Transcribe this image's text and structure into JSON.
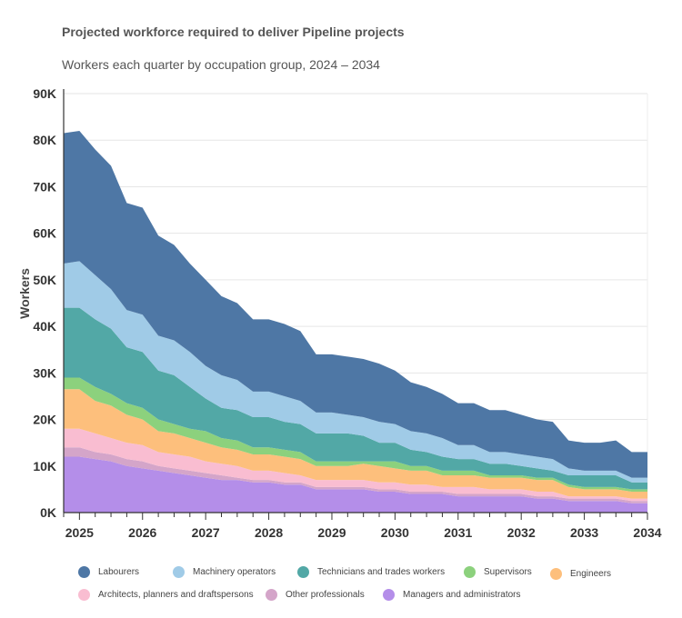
{
  "chart_data": {
    "type": "area",
    "stacked": true,
    "title": "Projected workforce required to deliver Pipeline projects",
    "subtitle": "Workers each quarter by occupation group, 2024 – 2034",
    "xlabel": "",
    "ylabel": "Workers",
    "ylim": [
      0,
      90000
    ],
    "xlim": [
      2024.75,
      2034
    ],
    "grid": true,
    "legend": "bottom",
    "y_ticks": [
      "0K",
      "10K",
      "20K",
      "30K",
      "40K",
      "50K",
      "60K",
      "70K",
      "80K",
      "90K"
    ],
    "x_ticks": [
      "2025",
      "2026",
      "2027",
      "2028",
      "2029",
      "2030",
      "2031",
      "2032",
      "2033",
      "2034"
    ],
    "x": [
      2024.75,
      2025,
      2025.25,
      2025.5,
      2025.75,
      2026,
      2026.25,
      2026.5,
      2026.75,
      2027,
      2027.25,
      2027.5,
      2027.75,
      2028,
      2028.25,
      2028.5,
      2028.75,
      2029,
      2029.25,
      2029.5,
      2029.75,
      2030,
      2030.25,
      2030.5,
      2030.75,
      2031,
      2031.25,
      2031.5,
      2031.75,
      2032,
      2032.25,
      2032.5,
      2032.75,
      2033,
      2033.25,
      2033.5,
      2033.75,
      2034
    ],
    "series": [
      {
        "name": "Managers and administrators",
        "color": "#b48ee9",
        "values": [
          12000,
          12000,
          11500,
          11000,
          10000,
          9500,
          9000,
          8500,
          8000,
          7500,
          7000,
          7000,
          6500,
          6500,
          6000,
          6000,
          5000,
          5000,
          5000,
          5000,
          4500,
          4500,
          4000,
          4000,
          4000,
          3500,
          3500,
          3500,
          3500,
          3500,
          3000,
          3000,
          2500,
          2500,
          2500,
          2500,
          2000,
          2000
        ]
      },
      {
        "name": "Other professionals",
        "color": "#d4a5c9",
        "values": [
          2000,
          2000,
          1500,
          1500,
          1500,
          1500,
          1000,
          1000,
          1000,
          1000,
          1000,
          500,
          500,
          500,
          500,
          500,
          500,
          500,
          500,
          500,
          500,
          500,
          500,
          500,
          500,
          500,
          500,
          500,
          500,
          500,
          500,
          500,
          500,
          500,
          500,
          500,
          500,
          500
        ]
      },
      {
        "name": "Architects, planners and draftspersons",
        "color": "#f9bdd1",
        "values": [
          4000,
          4000,
          4000,
          3500,
          3500,
          3500,
          3000,
          3000,
          3000,
          2500,
          2500,
          2500,
          2000,
          2000,
          2000,
          1500,
          1500,
          1500,
          1500,
          1500,
          1500,
          1500,
          1500,
          1500,
          1000,
          1500,
          1500,
          1000,
          1000,
          1000,
          1000,
          1000,
          500,
          500,
          500,
          500,
          500,
          500
        ]
      },
      {
        "name": "Engineers",
        "color": "#fdbf7c",
        "values": [
          8500,
          8500,
          7000,
          7000,
          6000,
          5500,
          4500,
          4500,
          4000,
          4000,
          3500,
          3500,
          3500,
          3500,
          3500,
          3500,
          3000,
          3000,
          3000,
          3500,
          3500,
          3000,
          3000,
          3000,
          2500,
          2500,
          2500,
          2500,
          2500,
          2500,
          2500,
          2500,
          2000,
          1500,
          1500,
          1500,
          1500,
          1500
        ]
      },
      {
        "name": "Supervisors",
        "color": "#8cd17d",
        "values": [
          2500,
          2500,
          3000,
          2500,
          2500,
          2500,
          2500,
          2000,
          2000,
          2500,
          2000,
          2000,
          1500,
          1500,
          1500,
          1500,
          1000,
          1000,
          1000,
          500,
          1000,
          1500,
          1000,
          1000,
          1000,
          1000,
          1000,
          500,
          500,
          500,
          500,
          500,
          500,
          500,
          500,
          500,
          500,
          500
        ]
      },
      {
        "name": "Technicians and trades workers",
        "color": "#52a8a6",
        "values": [
          15000,
          15000,
          14500,
          14000,
          12000,
          12000,
          10500,
          10500,
          9000,
          7000,
          6500,
          6500,
          6500,
          6500,
          6000,
          6000,
          6000,
          6000,
          6000,
          5500,
          4000,
          4000,
          3500,
          3000,
          3000,
          2500,
          2500,
          2500,
          2500,
          2000,
          2000,
          1500,
          2000,
          2500,
          2500,
          2500,
          1500,
          1500
        ]
      },
      {
        "name": "Machinery operators",
        "color": "#a0cbe7",
        "values": [
          9500,
          10000,
          9500,
          8500,
          8000,
          8000,
          7500,
          7500,
          7500,
          7000,
          7000,
          6500,
          5500,
          5500,
          5500,
          5000,
          4500,
          4500,
          4000,
          4000,
          4500,
          4000,
          4000,
          4000,
          4000,
          3000,
          3000,
          2500,
          2500,
          2500,
          2500,
          2500,
          1500,
          1000,
          1000,
          1000,
          1000,
          1000
        ]
      },
      {
        "name": "Labourers",
        "color": "#4e77a5",
        "values": [
          28000,
          28000,
          27000,
          26500,
          23000,
          23000,
          21500,
          20500,
          19000,
          18500,
          17000,
          16500,
          15500,
          15500,
          15500,
          15000,
          12500,
          12500,
          12500,
          12500,
          12500,
          11500,
          10500,
          10000,
          9500,
          9000,
          9000,
          9000,
          9000,
          8500,
          8000,
          8000,
          6000,
          6000,
          6000,
          6500,
          5500,
          5500
        ]
      }
    ],
    "legend_order": [
      "Labourers",
      "Machinery operators",
      "Technicians and trades workers",
      "Supervisors",
      "Engineers",
      "Architects, planners and draftspersons",
      "Other professionals",
      "Managers and administrators"
    ]
  }
}
